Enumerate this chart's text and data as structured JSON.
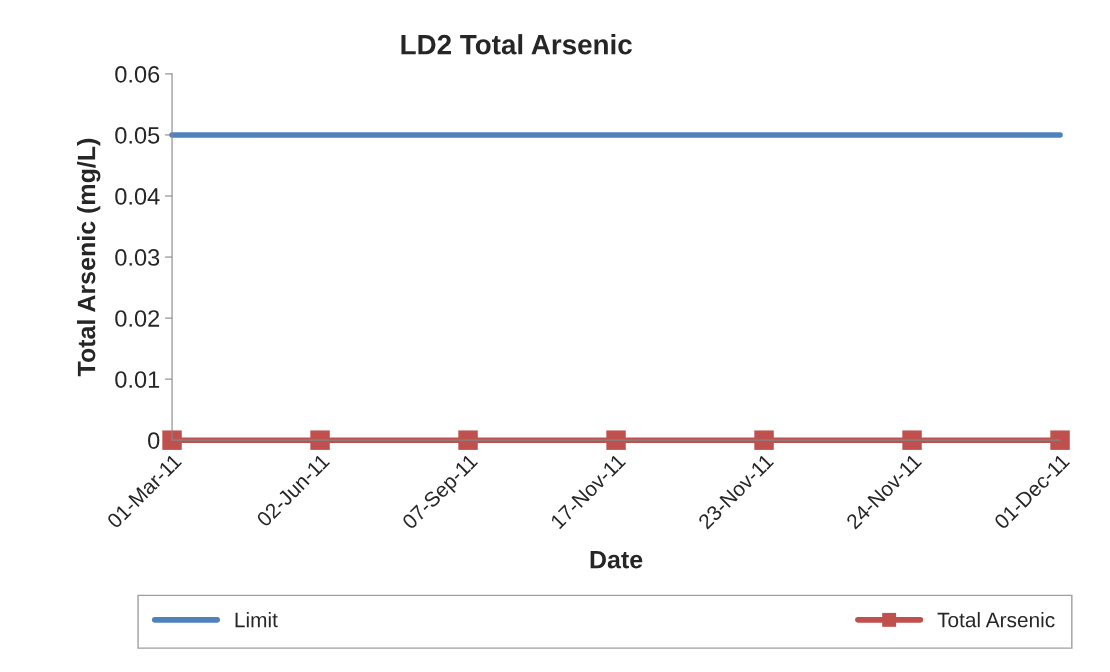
{
  "chart_data": {
    "type": "line",
    "title": "LD2 Total Arsenic",
    "xlabel": "Date",
    "ylabel": "Total Arsenic (mg/L)",
    "categories": [
      "01-Mar-11",
      "02-Jun-11",
      "07-Sep-11",
      "17-Nov-11",
      "23-Nov-11",
      "24-Nov-11",
      "01-Dec-11"
    ],
    "series": [
      {
        "name": "Limit",
        "color": "#4f81bd",
        "marker": "none",
        "values": [
          0.05,
          0.05,
          0.05,
          0.05,
          0.05,
          0.05,
          0.05
        ]
      },
      {
        "name": "Total Arsenic",
        "color": "#c0504d",
        "marker": "square",
        "values": [
          0,
          0,
          0,
          0,
          0,
          0,
          0
        ]
      }
    ],
    "ylim": [
      0,
      0.06
    ],
    "yticks": [
      0,
      0.01,
      0.02,
      0.03,
      0.04,
      0.05,
      0.06
    ],
    "grid": false,
    "legend": "bottom",
    "line_style": "solid"
  }
}
